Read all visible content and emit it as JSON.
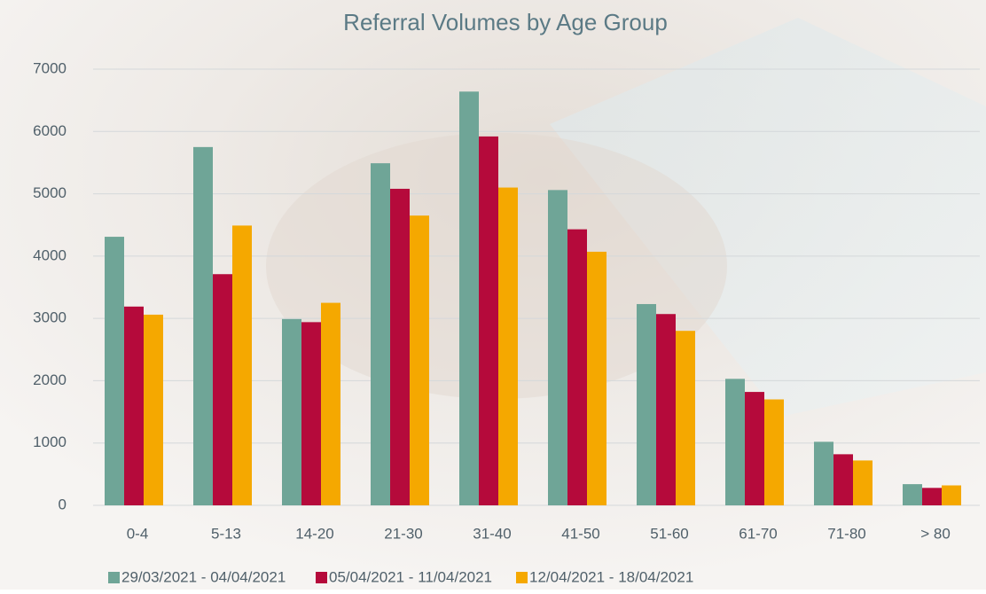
{
  "chart_data": {
    "type": "bar",
    "title": "Referral Volumes by Age Group",
    "categories": [
      "0-4",
      "5-13",
      "14-20",
      "21-30",
      "31-40",
      "41-50",
      "51-60",
      "61-70",
      "71-80",
      "> 80"
    ],
    "series": [
      {
        "name": "29/03/2021 - 04/04/2021",
        "color": "#6fa597",
        "values": [
          4310,
          5750,
          2990,
          5490,
          6640,
          5060,
          3230,
          2030,
          1020,
          340
        ]
      },
      {
        "name": "05/04/2021 - 11/04/2021",
        "color": "#b50a3b",
        "values": [
          3190,
          3710,
          2940,
          5080,
          5920,
          4430,
          3070,
          1820,
          820,
          280
        ]
      },
      {
        "name": "12/04/2021 - 18/04/2021",
        "color": "#f5a800",
        "values": [
          3060,
          4490,
          3250,
          4650,
          5100,
          4070,
          2800,
          1700,
          720,
          320
        ]
      }
    ],
    "ylim": [
      0,
      7000
    ],
    "yticks": [
      0,
      1000,
      2000,
      3000,
      4000,
      5000,
      6000,
      7000
    ],
    "grid": true,
    "legend": "bottom"
  }
}
